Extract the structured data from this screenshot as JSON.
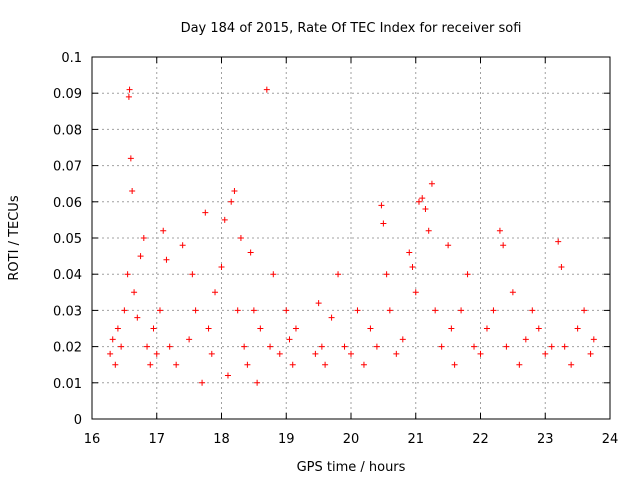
{
  "chart_data": {
    "type": "scatter",
    "title": "Day 184 of 2015, Rate Of TEC Index for receiver sofi",
    "xlabel": "GPS time / hours",
    "ylabel": "ROTI / TECUs",
    "xlim": [
      16,
      24
    ],
    "ylim": [
      0,
      0.1
    ],
    "grid": true,
    "marker": "+",
    "color": "#ff0000",
    "x_ticks": [
      16,
      17,
      18,
      19,
      20,
      21,
      22,
      23,
      24
    ],
    "x_tick_labels": [
      "16",
      "17",
      "18",
      "19",
      "20",
      "21",
      "22",
      "23",
      "24"
    ],
    "y_ticks": [
      0,
      0.01,
      0.02,
      0.03,
      0.04,
      0.05,
      0.06,
      0.07,
      0.08,
      0.09,
      0.1
    ],
    "y_tick_labels": [
      "0",
      "0.01",
      "0.02",
      "0.03",
      "0.04",
      "0.05",
      "0.06",
      "0.07",
      "0.08",
      "0.09",
      "0.1"
    ],
    "series": [
      {
        "name": "ROTI",
        "x": [
          16.28,
          16.32,
          16.36,
          16.4,
          16.45,
          16.5,
          16.55,
          16.57,
          16.58,
          16.6,
          16.62,
          16.65,
          16.7,
          16.75,
          16.8,
          16.85,
          16.9,
          16.95,
          17.0,
          17.05,
          17.1,
          17.15,
          17.2,
          17.3,
          17.4,
          17.5,
          17.55,
          17.6,
          17.7,
          17.75,
          17.8,
          17.85,
          17.9,
          18.0,
          18.05,
          18.1,
          18.15,
          18.2,
          18.25,
          18.3,
          18.35,
          18.4,
          18.45,
          18.5,
          18.55,
          18.6,
          18.7,
          18.75,
          18.8,
          18.9,
          19.0,
          19.05,
          19.1,
          19.15,
          19.45,
          19.5,
          19.55,
          19.6,
          19.7,
          19.8,
          19.9,
          20.0,
          20.1,
          20.2,
          20.3,
          20.4,
          20.47,
          20.5,
          20.55,
          20.6,
          20.7,
          20.8,
          20.9,
          20.95,
          21.0,
          21.05,
          21.1,
          21.15,
          21.2,
          21.25,
          21.3,
          21.4,
          21.5,
          21.55,
          21.6,
          21.7,
          21.8,
          21.9,
          22.0,
          22.1,
          22.2,
          22.3,
          22.35,
          22.4,
          22.5,
          22.6,
          22.7,
          22.8,
          22.9,
          23.0,
          23.1,
          23.2,
          23.25,
          23.3,
          23.4,
          23.5,
          23.6,
          23.7,
          23.75
        ],
        "y": [
          0.018,
          0.022,
          0.015,
          0.025,
          0.02,
          0.03,
          0.04,
          0.089,
          0.091,
          0.072,
          0.063,
          0.035,
          0.028,
          0.045,
          0.05,
          0.02,
          0.015,
          0.025,
          0.018,
          0.03,
          0.052,
          0.044,
          0.02,
          0.015,
          0.048,
          0.022,
          0.04,
          0.03,
          0.01,
          0.057,
          0.025,
          0.018,
          0.035,
          0.042,
          0.055,
          0.012,
          0.06,
          0.063,
          0.03,
          0.05,
          0.02,
          0.015,
          0.046,
          0.03,
          0.01,
          0.025,
          0.091,
          0.02,
          0.04,
          0.018,
          0.03,
          0.022,
          0.015,
          0.025,
          0.018,
          0.032,
          0.02,
          0.015,
          0.028,
          0.04,
          0.02,
          0.018,
          0.03,
          0.015,
          0.025,
          0.02,
          0.059,
          0.054,
          0.04,
          0.03,
          0.018,
          0.022,
          0.046,
          0.042,
          0.035,
          0.06,
          0.061,
          0.058,
          0.052,
          0.065,
          0.03,
          0.02,
          0.048,
          0.025,
          0.015,
          0.03,
          0.04,
          0.02,
          0.018,
          0.025,
          0.03,
          0.052,
          0.048,
          0.02,
          0.035,
          0.015,
          0.022,
          0.03,
          0.025,
          0.018,
          0.02,
          0.049,
          0.042,
          0.02,
          0.015,
          0.025,
          0.03,
          0.018,
          0.022
        ]
      }
    ]
  }
}
